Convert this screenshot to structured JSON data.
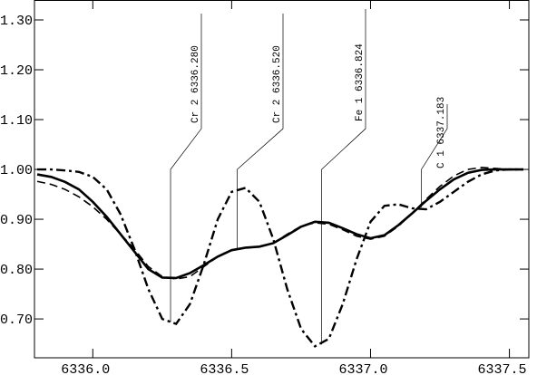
{
  "chart_data": {
    "type": "line",
    "x": [
      6335.8,
      6335.85,
      6335.9,
      6335.95,
      6336.0,
      6336.05,
      6336.1,
      6336.15,
      6336.2,
      6336.25,
      6336.3,
      6336.35,
      6336.4,
      6336.45,
      6336.5,
      6336.55,
      6336.6,
      6336.65,
      6336.7,
      6336.75,
      6336.8,
      6336.85,
      6336.9,
      6336.95,
      6337.0,
      6337.05,
      6337.1,
      6337.15,
      6337.2,
      6337.25,
      6337.3,
      6337.35,
      6337.4,
      6337.45,
      6337.5,
      6337.55
    ],
    "series": [
      {
        "color": "#000000",
        "style": "solid",
        "values": [
          0.99,
          0.985,
          0.975,
          0.96,
          0.935,
          0.905,
          0.87,
          0.835,
          0.8,
          0.783,
          0.782,
          0.792,
          0.808,
          0.825,
          0.838,
          0.843,
          0.845,
          0.852,
          0.868,
          0.885,
          0.895,
          0.893,
          0.882,
          0.87,
          0.862,
          0.868,
          0.888,
          0.912,
          0.937,
          0.96,
          0.98,
          0.993,
          0.999,
          1.0,
          1.0,
          1.0
        ]
      },
      {
        "color": "#000000",
        "style": "dashed",
        "values": [
          0.976,
          0.97,
          0.96,
          0.945,
          0.925,
          0.9,
          0.87,
          0.84,
          0.805,
          0.785,
          0.78,
          0.785,
          0.805,
          0.825,
          0.838,
          0.842,
          0.845,
          0.852,
          0.87,
          0.886,
          0.893,
          0.89,
          0.879,
          0.866,
          0.86,
          0.866,
          0.886,
          0.912,
          0.94,
          0.966,
          0.987,
          1.0,
          1.004,
          1.002,
          1.0,
          1.0
        ]
      },
      {
        "color": "#000000",
        "style": "dashdot",
        "values": [
          1.0,
          1.0,
          0.998,
          0.995,
          0.985,
          0.96,
          0.91,
          0.84,
          0.76,
          0.7,
          0.69,
          0.73,
          0.81,
          0.9,
          0.955,
          0.963,
          0.935,
          0.86,
          0.76,
          0.68,
          0.645,
          0.66,
          0.73,
          0.82,
          0.895,
          0.927,
          0.93,
          0.922,
          0.92,
          0.935,
          0.955,
          0.975,
          0.99,
          0.998,
          1.0,
          1.0
        ]
      }
    ],
    "annotations": [
      {
        "label": "Cr 2 6336.280",
        "x": 6336.28
      },
      {
        "label": "Cr 2 6336.520",
        "x": 6336.52
      },
      {
        "label": "Fe 1 6336.824",
        "x": 6336.824
      },
      {
        "label": "C  1 6337.183",
        "x": 6337.183
      }
    ],
    "xlim": [
      6335.79,
      6337.57
    ],
    "ylim": [
      0.622,
      1.34
    ],
    "xticks": [
      {
        "value": 6336.0,
        "label": "6336.0"
      },
      {
        "value": 6336.5,
        "label": "6336.5"
      },
      {
        "value": 6337.0,
        "label": "6337.0"
      },
      {
        "value": 6337.5,
        "label": "6337.5"
      }
    ],
    "yticks": [
      {
        "value": 0.7,
        "label": "0.70"
      },
      {
        "value": 0.8,
        "label": "0.80"
      },
      {
        "value": 0.9,
        "label": "0.90"
      },
      {
        "value": 1.0,
        "label": "1.00"
      },
      {
        "value": 1.1,
        "label": "1.10"
      },
      {
        "value": 1.2,
        "label": "1.20"
      },
      {
        "value": 1.3,
        "label": "1.30"
      }
    ]
  }
}
